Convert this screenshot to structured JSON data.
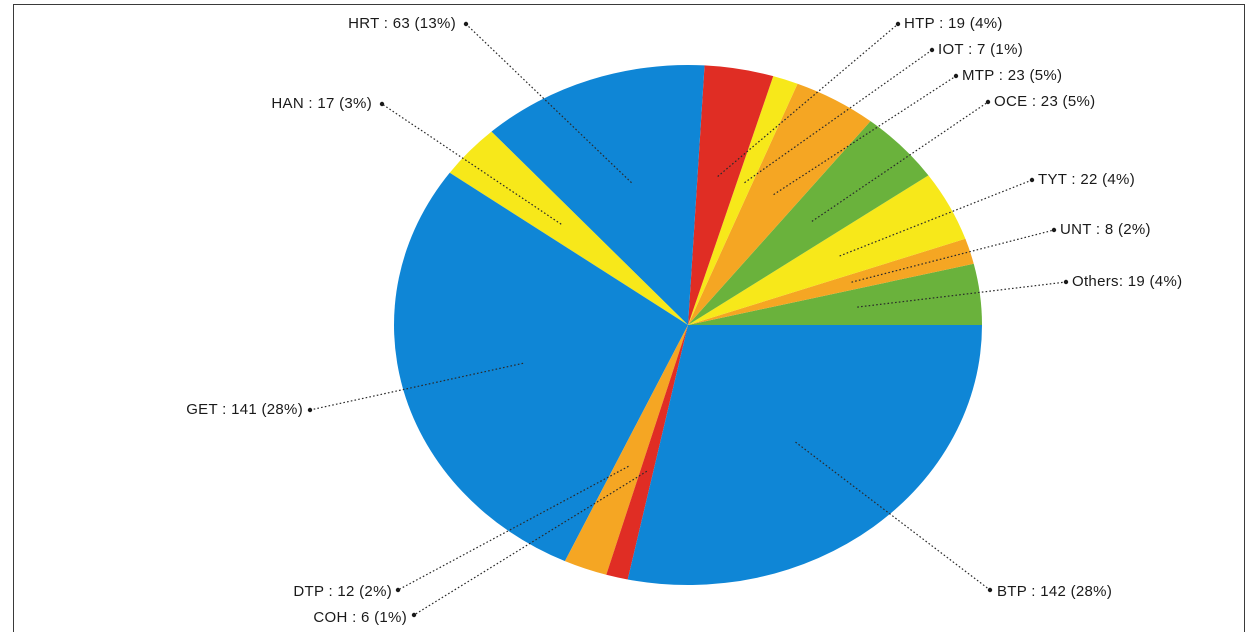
{
  "chart_data": {
    "type": "pie",
    "title": "",
    "start_angle_deg": 0,
    "direction": "counterclockwise",
    "slices": [
      {
        "name": "Others",
        "value": 19,
        "label": "Others: 19 (4%)",
        "color": "#6ab23c"
      },
      {
        "name": "UNT",
        "value": 8,
        "label": "UNT : 8 (2%)",
        "color": "#f5a623"
      },
      {
        "name": "TYT",
        "value": 22,
        "label": "TYT : 22 (4%)",
        "color": "#f7e81a"
      },
      {
        "name": "OCE",
        "value": 23,
        "label": "OCE : 23 (5%)",
        "color": "#6ab23c"
      },
      {
        "name": "MTP",
        "value": 23,
        "label": "MTP : 23 (5%)",
        "color": "#f5a623"
      },
      {
        "name": "IOT",
        "value": 7,
        "label": "IOT : 7 (1%)",
        "color": "#f7e81a"
      },
      {
        "name": "HTP",
        "value": 19,
        "label": "HTP : 19 (4%)",
        "color": "#e02d24"
      },
      {
        "name": "HRT",
        "value": 63,
        "label": "HRT : 63 (13%)",
        "color": "#0f86d6"
      },
      {
        "name": "HAN",
        "value": 17,
        "label": "HAN : 17 (3%)",
        "color": "#f7e81a"
      },
      {
        "name": "GET",
        "value": 141,
        "label": "GET : 141 (28%)",
        "color": "#0f86d6"
      },
      {
        "name": "DTP",
        "value": 12,
        "label": "DTP : 12 (2%)",
        "color": "#f5a623"
      },
      {
        "name": "COH",
        "value": 6,
        "label": "COH : 6 (1%)",
        "color": "#e02d24"
      },
      {
        "name": "BTP",
        "value": 142,
        "label": "BTP : 142 (28%)",
        "color": "#0f86d6"
      }
    ]
  }
}
